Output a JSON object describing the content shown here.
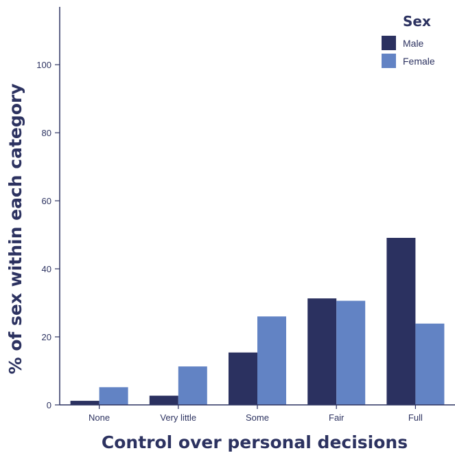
{
  "colors": {
    "male": "#2b3160",
    "female": "#6283c4",
    "axis": "#2c3260"
  },
  "chart_data": {
    "type": "bar",
    "xlabel": "Control over personal decisions",
    "ylabel": "% of sex within each category",
    "ylim": [
      0,
      117
    ],
    "yticks": [
      0,
      20,
      40,
      60,
      80,
      100
    ],
    "categories": [
      "None",
      "Very little",
      "Some",
      "Fair",
      "Full"
    ],
    "legend": {
      "title": "Sex",
      "position": "top-right"
    },
    "series": [
      {
        "name": "Male",
        "values": [
          1.2,
          2.7,
          15.4,
          31.3,
          49.1
        ]
      },
      {
        "name": "Female",
        "values": [
          5.2,
          11.3,
          26.0,
          30.6,
          23.9
        ]
      }
    ],
    "grid": false
  }
}
